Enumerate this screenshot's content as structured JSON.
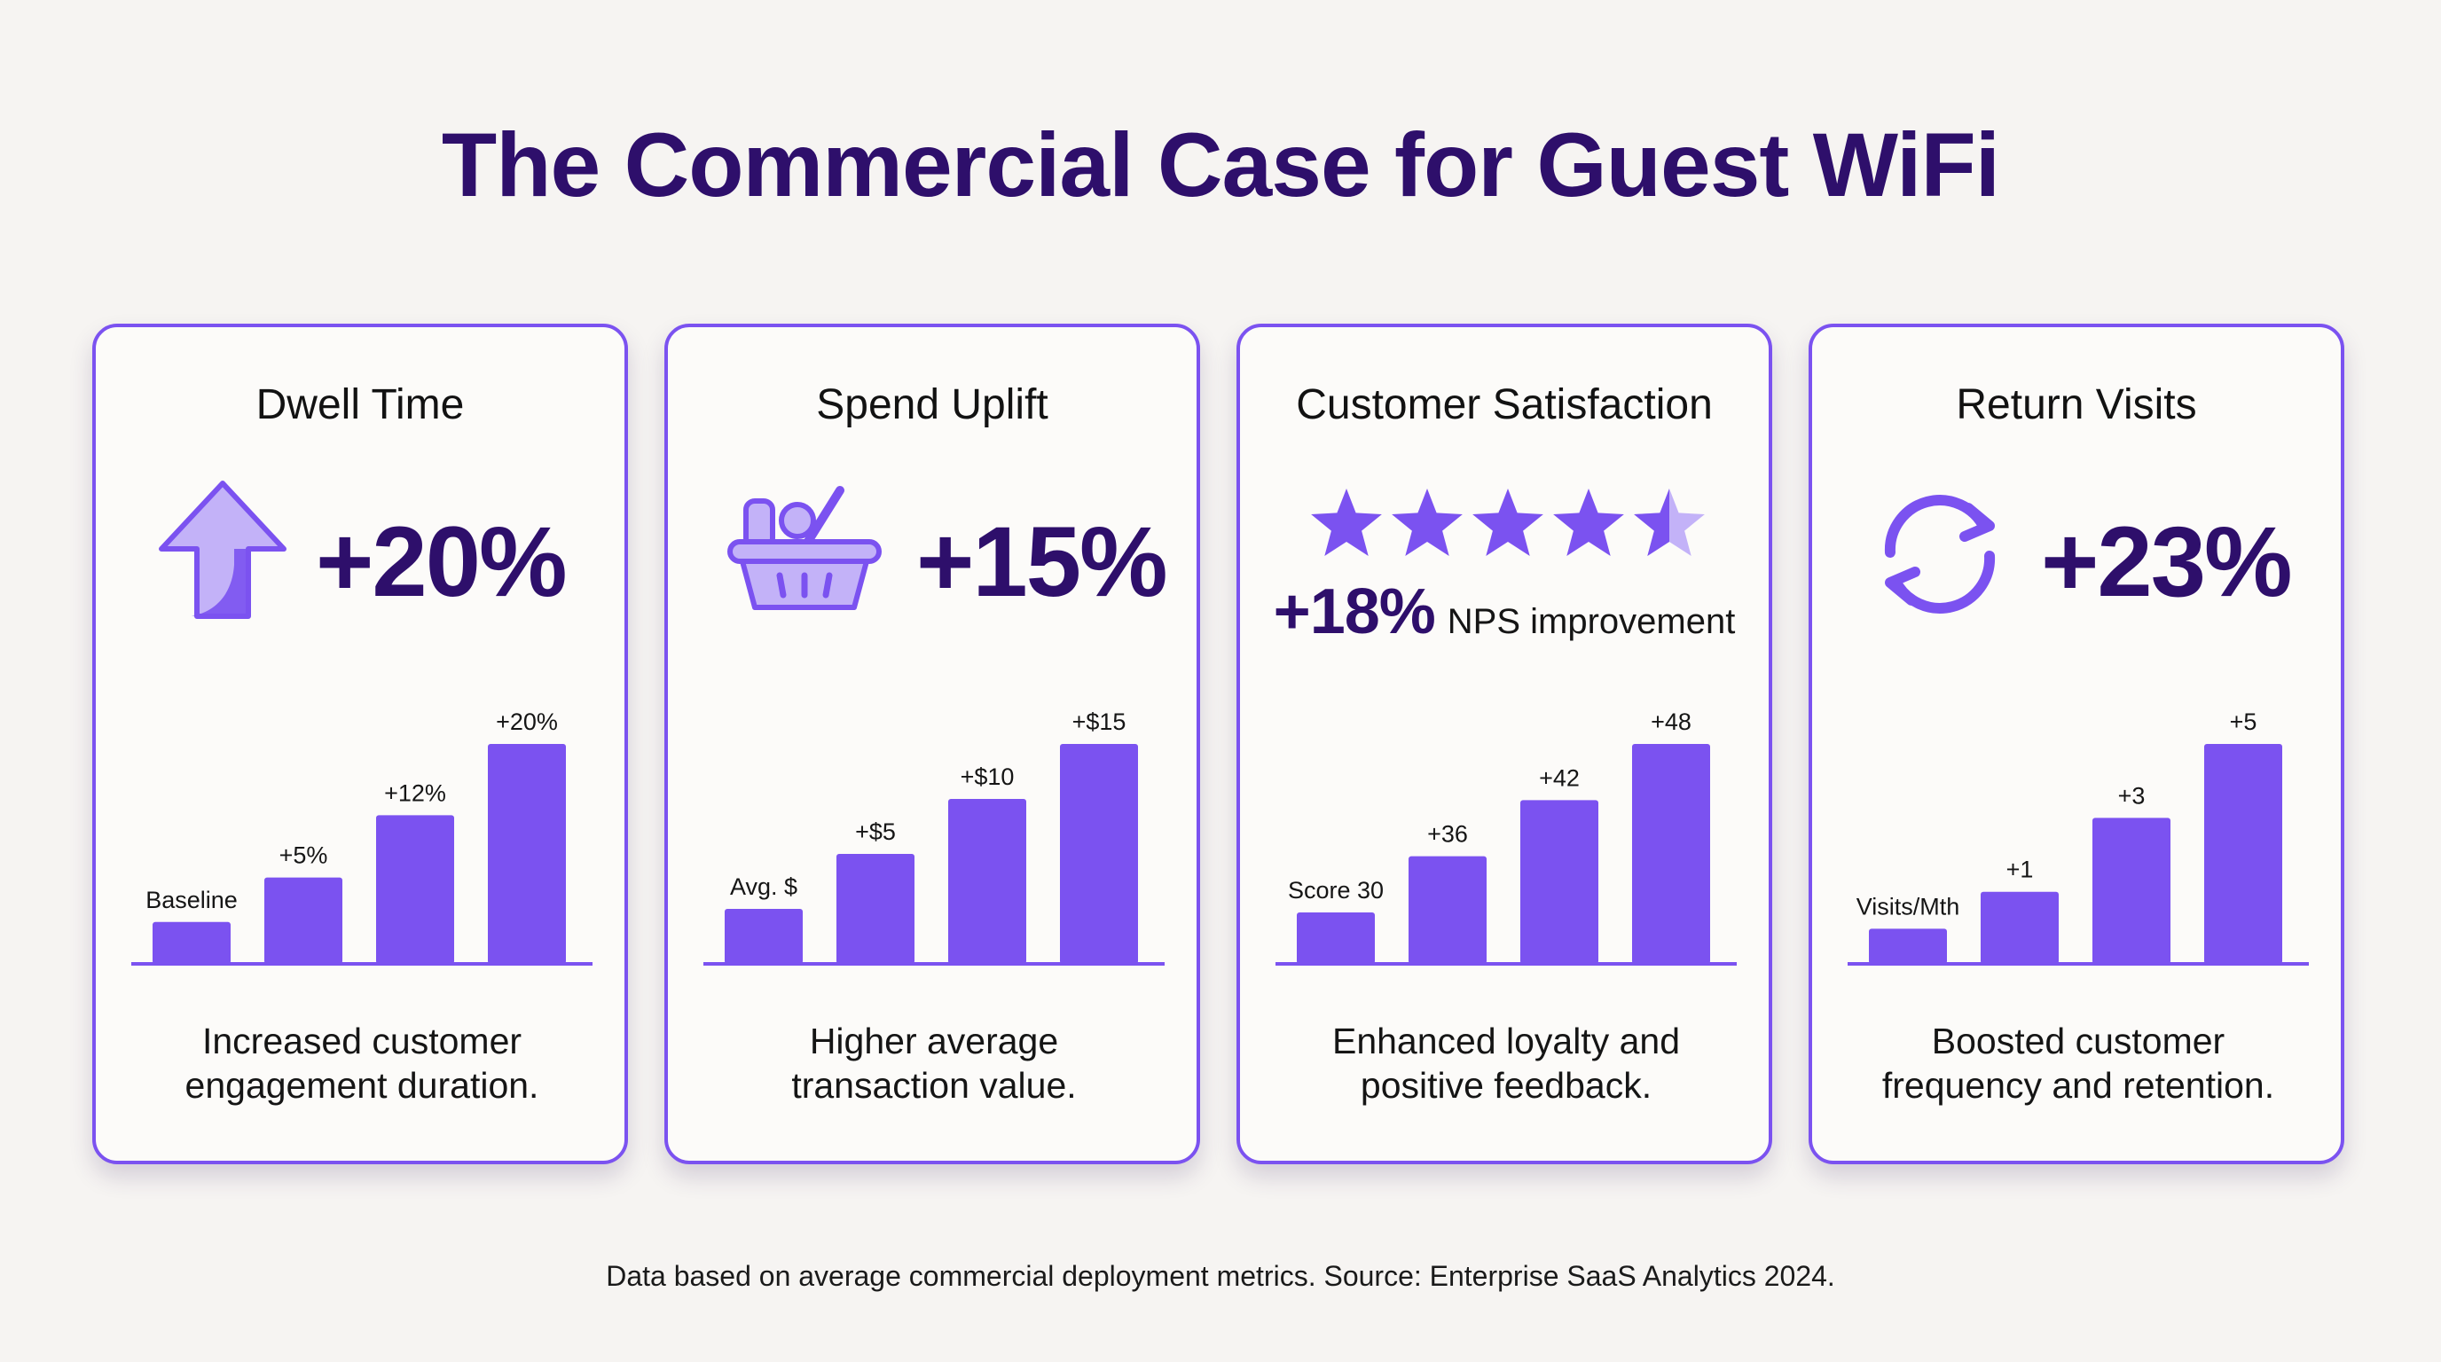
{
  "title": "The Commercial Case for Guest WiFi",
  "footnote": "Data based on average commercial deployment metrics. Source: Enterprise SaaS Analytics 2024.",
  "colors": {
    "accent": "#7b52f0",
    "heading": "#2e0f6b",
    "icon_light": "#c3b2f8"
  },
  "cards": [
    {
      "title": "Dwell Time",
      "metric": "+20%",
      "icon": "arrow-up-icon",
      "description": [
        "Increased customer",
        "engagement duration."
      ]
    },
    {
      "title": "Spend Uplift",
      "metric": "+15%",
      "icon": "shopping-basket-icon",
      "description": [
        "Higher average",
        "transaction value."
      ]
    },
    {
      "title": "Customer Satisfaction",
      "metric": "+18%",
      "metric_label": "NPS improvement",
      "icon": "star-rating-icon",
      "rating": 4.5,
      "description": [
        "Enhanced loyalty and",
        "positive feedback."
      ]
    },
    {
      "title": "Return Visits",
      "metric": "+23%",
      "icon": "refresh-cycle-icon",
      "description": [
        "Boosted customer",
        "frequency and retention."
      ]
    }
  ],
  "chart_data": [
    {
      "type": "bar",
      "title": "",
      "xlabel": "",
      "ylabel": "",
      "grid": false,
      "categories": [
        "Baseline",
        "+5%",
        "+12%",
        "+20%"
      ],
      "values": [
        0,
        5,
        12,
        20
      ],
      "ylim": [
        -4.7,
        20
      ]
    },
    {
      "type": "bar",
      "title": "",
      "xlabel": "",
      "ylabel": "",
      "grid": false,
      "categories": [
        "Avg. $",
        "+$5",
        "+$10",
        "+$15"
      ],
      "values": [
        0,
        5,
        10,
        15
      ],
      "ylim": [
        -5,
        15
      ]
    },
    {
      "type": "bar",
      "title": "",
      "xlabel": "",
      "ylabel": "",
      "grid": false,
      "categories": [
        "Score 30",
        "+36",
        "+42",
        "+48"
      ],
      "values": [
        30,
        36,
        42,
        48
      ],
      "ylim": [
        24.5,
        48
      ]
    },
    {
      "type": "bar",
      "title": "",
      "xlabel": "",
      "ylabel": "",
      "grid": false,
      "categories": [
        "Visits/Mth",
        "+1",
        "+3",
        "+5"
      ],
      "values": [
        0,
        1,
        3,
        5
      ],
      "ylim": [
        -0.95,
        5
      ]
    }
  ]
}
